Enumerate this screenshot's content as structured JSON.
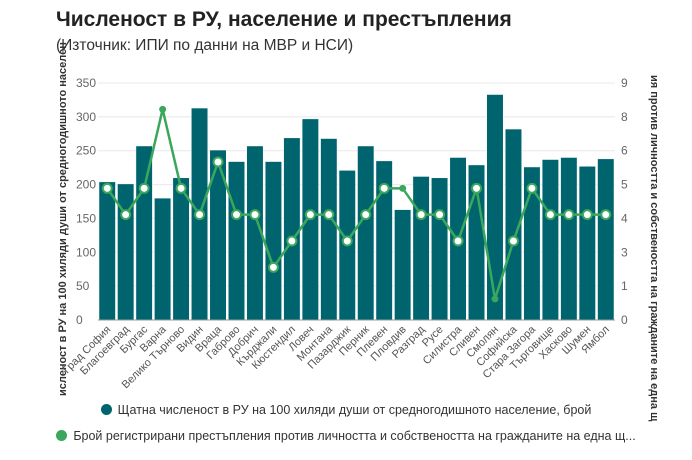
{
  "title": "Численост в РУ, население и престъпления",
  "subtitle": "(Източник: ИПИ по данни на МВР и НСИ)",
  "colors": {
    "bars": "#00646e",
    "line": "#3aa75c"
  },
  "chart_data": {
    "type": "bar+line",
    "categories": [
      "Град София",
      "Благоевград",
      "Бургас",
      "Варна",
      "Велико Търново",
      "Видин",
      "Враца",
      "Габрово",
      "Добрич",
      "Кърджали",
      "Кюстендил",
      "Ловеч",
      "Монтана",
      "Пазарджик",
      "Перник",
      "Плевен",
      "Пловдив",
      "Разград",
      "Русе",
      "Силистра",
      "Сливен",
      "Смолян",
      "Софийска",
      "Стара Загора",
      "Търговище",
      "Хасково",
      "Шумен",
      "Ямбол"
    ],
    "series": [
      {
        "name": "Щатна численост в РУ на 100 хиляди души от средногодишното население, брой",
        "type": "bar",
        "axis": "left",
        "values": [
          204,
          201,
          257,
          180,
          210,
          313,
          251,
          234,
          257,
          234,
          269,
          297,
          268,
          221,
          257,
          235,
          163,
          212,
          210,
          240,
          229,
          333,
          282,
          226,
          237,
          240,
          227,
          238
        ]
      },
      {
        "name": "Брой регистрирани престъпления против личността и собствеността на гражданите на една щ...",
        "type": "line",
        "axis": "right",
        "values": [
          5,
          4,
          5,
          8,
          5,
          4,
          6,
          4,
          4,
          2,
          3,
          4,
          4,
          3,
          4,
          5,
          5,
          4,
          4,
          3,
          5,
          0.8,
          3,
          5,
          4,
          4,
          4,
          4
        ]
      }
    ],
    "left_axis": {
      "title": "исленост в РУ на 100 хиляди души от средногодишното населен",
      "range": [
        0,
        350
      ],
      "ticks": [
        "0",
        "50",
        "100",
        "150",
        "200",
        "250",
        "300",
        "350"
      ]
    },
    "right_axis": {
      "title": "ия против личността и собствеността на гражданите на една щ",
      "range": [
        0,
        9
      ],
      "ticks": [
        "0",
        "1",
        "3",
        "4",
        "5",
        "6",
        "8",
        "9"
      ]
    },
    "grid": true,
    "legend_position": "bottom"
  }
}
